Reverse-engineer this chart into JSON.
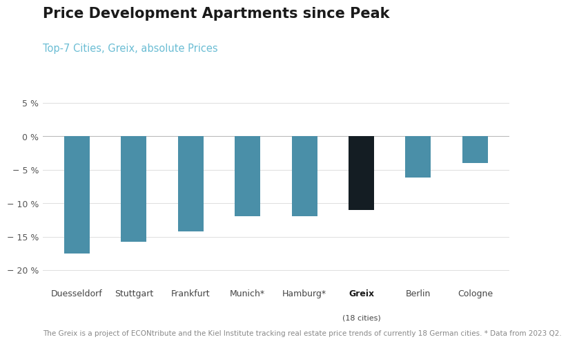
{
  "title": "Price Development Apartments since Peak",
  "subtitle": "Top-7 Cities, Greix, absolute Prices",
  "footnote": "The Greix is a project of ECONtribute and the Kiel Institute tracking real estate price trends of currently 18 German cities. * Data from 2023 Q2.",
  "categories": [
    "Duesseldorf",
    "Stuttgart",
    "Frankfurt",
    "Munich*",
    "Hamburg*",
    "Greix",
    "Berlin",
    "Cologne"
  ],
  "greix_sub": "(18 cities)",
  "values": [
    -17.5,
    -15.8,
    -14.2,
    -12.0,
    -12.0,
    -11.0,
    -6.2,
    -4.0
  ],
  "bar_colors": [
    "#4a8fa8",
    "#4a8fa8",
    "#4a8fa8",
    "#4a8fa8",
    "#4a8fa8",
    "#141d23",
    "#4a8fa8",
    "#4a8fa8"
  ],
  "ylim": [
    -22,
    8
  ],
  "yticks": [
    5,
    0,
    -5,
    -10,
    -15,
    -20
  ],
  "background_color": "#ffffff",
  "title_color": "#1a1a1a",
  "subtitle_color": "#6bbdd4",
  "footnote_color": "#888888",
  "grid_color": "#dddddd",
  "bar_width": 0.45,
  "title_fontsize": 15,
  "subtitle_fontsize": 10.5,
  "footnote_fontsize": 7.5,
  "tick_fontsize": 9
}
